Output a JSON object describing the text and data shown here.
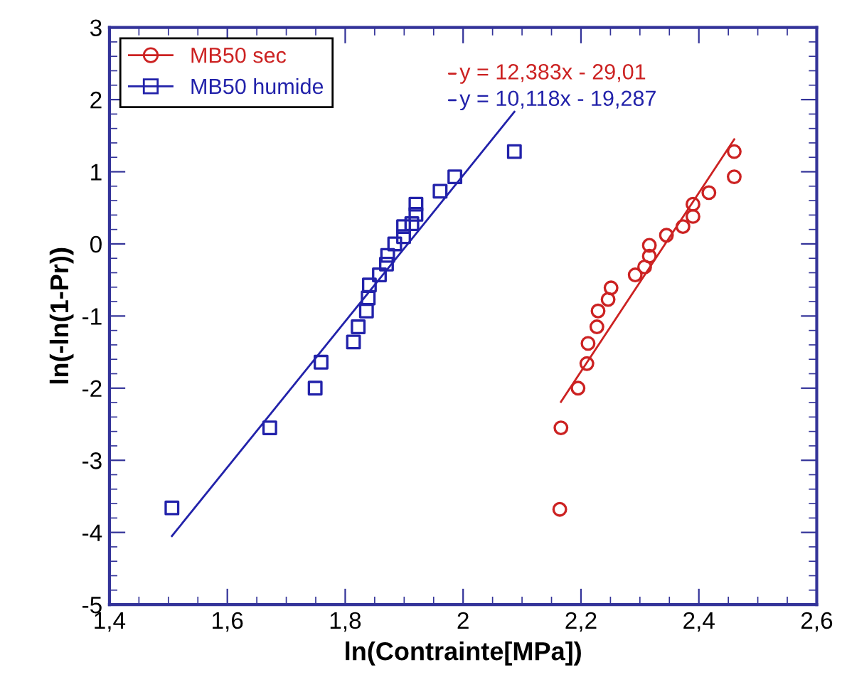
{
  "chart_data": {
    "type": "scatter",
    "xlabel": "ln(Contrainte[MPa])",
    "ylabel": "ln(-ln(1-Pr))",
    "xlim": [
      1.4,
      2.6
    ],
    "ylim": [
      -5,
      3
    ],
    "xticks": [
      {
        "value": 1.4,
        "label": "1,4"
      },
      {
        "value": 1.6,
        "label": "1,6"
      },
      {
        "value": 1.8,
        "label": "1,8"
      },
      2,
      {
        "value": 2.2,
        "label": "2,2"
      },
      {
        "value": 2.4,
        "label": "2,4"
      },
      {
        "value": 2.6,
        "label": "2,6"
      }
    ],
    "yticks": [
      -5,
      -4,
      -3,
      -2,
      -1,
      0,
      1,
      2,
      3
    ],
    "grid": false,
    "legend": "top left",
    "series": [
      {
        "name": "MB50 sec",
        "marker": "circle",
        "color": "#cc2222",
        "x": [
          2.46,
          2.46,
          2.417,
          2.39,
          2.39,
          2.373,
          2.345,
          2.316,
          2.316,
          2.308,
          2.292,
          2.251,
          2.246,
          2.229,
          2.227,
          2.212,
          2.21,
          2.195,
          2.166,
          2.164
        ],
        "values": [
          1.28,
          0.93,
          0.71,
          0.55,
          0.38,
          0.24,
          0.12,
          -0.02,
          -0.17,
          -0.32,
          -0.43,
          -0.61,
          -0.77,
          -0.93,
          -1.15,
          -1.38,
          -1.66,
          -2.0,
          -2.55,
          -3.68
        ]
      },
      {
        "name": "MB50 humide",
        "marker": "square",
        "color": "#2222aa",
        "x": [
          1.506,
          1.672,
          1.749,
          1.759,
          1.814,
          1.822,
          1.836,
          1.839,
          1.841,
          1.858,
          1.87,
          1.872,
          1.884,
          1.899,
          1.899,
          1.913,
          1.92,
          1.92,
          1.961,
          1.986,
          2.087
        ],
        "values": [
          -3.66,
          -2.55,
          -2.0,
          -1.64,
          -1.36,
          -1.15,
          -0.93,
          -0.75,
          -0.57,
          -0.43,
          -0.28,
          -0.16,
          0.0,
          0.1,
          0.24,
          0.28,
          0.41,
          0.55,
          0.73,
          0.93,
          1.28
        ]
      },
      {
        "type": "line",
        "color": "#cc2222",
        "x": [
          2.166,
          2.46
        ],
        "values": [
          -2.19,
          1.45
        ]
      },
      {
        "type": "line",
        "color": "#2222aa",
        "x": [
          1.506,
          2.087
        ],
        "values": [
          -4.05,
          1.83
        ]
      }
    ],
    "annotations": [
      "y = 12,383x - 29,01",
      "y = 10,118x - 19,287"
    ]
  }
}
